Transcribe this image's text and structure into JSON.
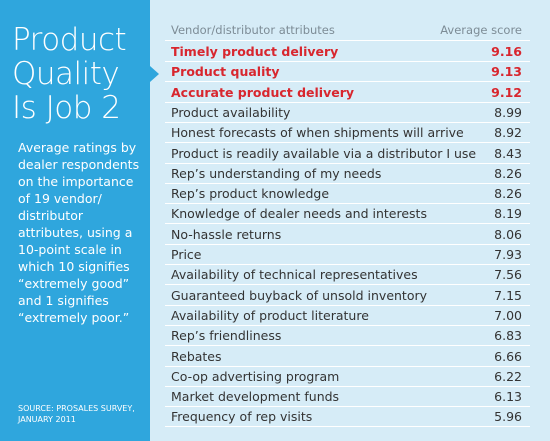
{
  "sidebar": {
    "title_lines": [
      "Product",
      "Quality",
      "Is Job 2"
    ],
    "description_lines": [
      "Average ratings by",
      "dealer respondents",
      "on the importance",
      "of 19 vendor/",
      "distributor",
      "attributes, using a",
      "10-point scale in",
      "which 10 signifies",
      "“extremely good”",
      "and 1 signifies",
      "“extremely poor.”"
    ],
    "source_lines": [
      "SOURCE: PROSALES SURVEY,",
      "JANUARY 2011"
    ]
  },
  "table": {
    "header": [
      "Vendor/distributor attributes",
      "Average score"
    ],
    "rows": [
      {
        "attribute": "Timely product delivery",
        "score": "9.16",
        "highlight": true
      },
      {
        "attribute": "Product quality",
        "score": "9.13",
        "highlight": true
      },
      {
        "attribute": "Accurate product delivery",
        "score": "9.12",
        "highlight": true
      },
      {
        "attribute": "Product availability",
        "score": "8.99",
        "highlight": false
      },
      {
        "attribute": "Honest forecasts of when shipments will arrive",
        "score": "8.92",
        "highlight": false
      },
      {
        "attribute": "Product is readily available via a distributor I use",
        "score": "8.43",
        "highlight": false
      },
      {
        "attribute": "Rep’s understanding of my needs",
        "score": "8.26",
        "highlight": false
      },
      {
        "attribute": "Rep’s product knowledge",
        "score": "8.26",
        "highlight": false
      },
      {
        "attribute": "Knowledge of dealer needs and interests",
        "score": "8.19",
        "highlight": false
      },
      {
        "attribute": "No-hassle returns",
        "score": "8.06",
        "highlight": false
      },
      {
        "attribute": "Price",
        "score": "7.93",
        "highlight": false
      },
      {
        "attribute": "Availability of technical representatives",
        "score": "7.56",
        "highlight": false
      },
      {
        "attribute": "Guaranteed buyback of unsold inventory",
        "score": "7.15",
        "highlight": false
      },
      {
        "attribute": "Availability of product literature",
        "score": "7.00",
        "highlight": false
      },
      {
        "attribute": "Rep’s friendliness",
        "score": "6.83",
        "highlight": false
      },
      {
        "attribute": "Rebates",
        "score": "6.66",
        "highlight": false
      },
      {
        "attribute": "Co-op advertising program",
        "score": "6.22",
        "highlight": false
      },
      {
        "attribute": "Market development funds",
        "score": "6.13",
        "highlight": false
      },
      {
        "attribute": "Frequency of rep visits",
        "score": "5.96",
        "highlight": false
      }
    ]
  }
}
